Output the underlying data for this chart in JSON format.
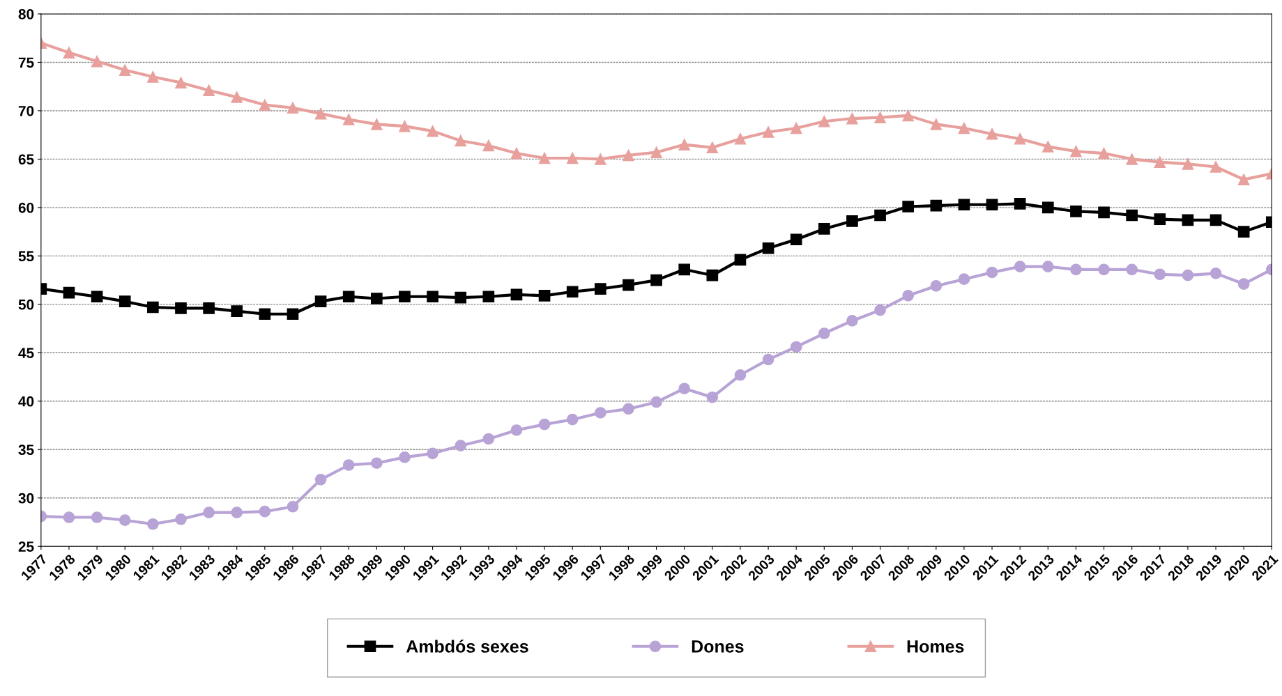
{
  "chart_data": {
    "type": "line",
    "categories": [
      "1977",
      "1978",
      "1979",
      "1980",
      "1981",
      "1982",
      "1983",
      "1984",
      "1985",
      "1986",
      "1987",
      "1988",
      "1989",
      "1990",
      "1991",
      "1992",
      "1993",
      "1994",
      "1995",
      "1996",
      "1997",
      "1998",
      "1999",
      "2000",
      "2001",
      "2002",
      "2003",
      "2004",
      "2005",
      "2006",
      "2007",
      "2008",
      "2009",
      "2010",
      "2011",
      "2012",
      "2013",
      "2014",
      "2015",
      "2016",
      "2017",
      "2018",
      "2019",
      "2020",
      "2021"
    ],
    "series": [
      {
        "name": "Ambdós sexes",
        "color": "#000000",
        "marker": "square",
        "values": [
          51.6,
          51.2,
          50.8,
          50.3,
          49.7,
          49.6,
          49.6,
          49.3,
          49.0,
          49.0,
          50.3,
          50.8,
          50.6,
          50.8,
          50.8,
          50.7,
          50.8,
          51.0,
          50.9,
          51.3,
          51.6,
          52.0,
          52.5,
          53.6,
          53.0,
          54.6,
          55.8,
          56.7,
          57.8,
          58.6,
          59.2,
          60.1,
          60.2,
          60.3,
          60.3,
          60.4,
          60.0,
          59.6,
          59.5,
          59.2,
          58.8,
          58.7,
          58.7,
          57.5,
          58.5
        ]
      },
      {
        "name": "Dones",
        "color": "#b8a3d6",
        "marker": "circle",
        "values": [
          28.1,
          28.0,
          28.0,
          27.7,
          27.3,
          27.8,
          28.5,
          28.5,
          28.6,
          29.1,
          31.9,
          33.4,
          33.6,
          34.2,
          34.6,
          35.4,
          36.1,
          37.0,
          37.6,
          38.1,
          38.8,
          39.2,
          39.9,
          41.3,
          40.4,
          42.7,
          44.3,
          45.6,
          47.0,
          48.3,
          49.4,
          50.9,
          51.9,
          52.6,
          53.3,
          53.9,
          53.9,
          53.6,
          53.6,
          53.6,
          53.1,
          53.0,
          53.2,
          52.1,
          53.6
        ]
      },
      {
        "name": "Homes",
        "color": "#e8a09d",
        "marker": "triangle",
        "values": [
          77.0,
          76.0,
          75.1,
          74.2,
          73.5,
          72.9,
          72.1,
          71.4,
          70.6,
          70.3,
          69.7,
          69.1,
          68.6,
          68.4,
          67.9,
          66.9,
          66.4,
          65.6,
          65.1,
          65.1,
          65.0,
          65.4,
          65.7,
          66.5,
          66.2,
          67.1,
          67.8,
          68.2,
          68.9,
          69.2,
          69.3,
          69.5,
          68.6,
          68.2,
          67.6,
          67.1,
          66.3,
          65.8,
          65.6,
          65.0,
          64.7,
          64.5,
          64.2,
          62.9,
          63.5
        ]
      }
    ],
    "ylim": [
      25,
      80
    ],
    "yticks": [
      25,
      30,
      35,
      40,
      45,
      50,
      55,
      60,
      65,
      70,
      75,
      80
    ],
    "grid": "y",
    "legend": "bottom",
    "line_style": "solid"
  }
}
